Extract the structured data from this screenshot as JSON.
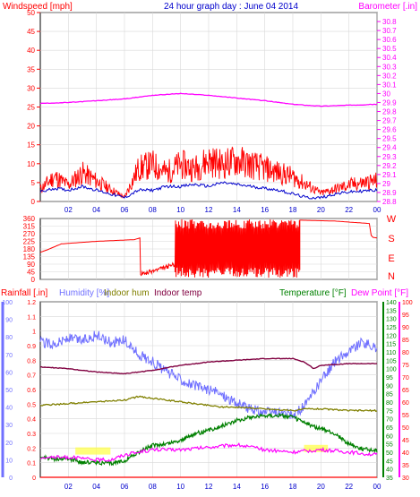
{
  "header": {
    "left_title": "Windspeed [mph]",
    "center_title": "24 hour graph day : June 04 2014",
    "right_title": "Barometer [.in]"
  },
  "colors": {
    "wind_speed": "#ff0000",
    "wind_avg": "#0000cc",
    "barometer": "#ff00ff",
    "wind_dir": "#ff0000",
    "rainfall": "#ff0000",
    "humidity": "#7070ff",
    "indoor_hum": "#808000",
    "indoor_temp": "#800040",
    "temperature": "#008000",
    "dew_point": "#ff00ff",
    "background": "#ffffff",
    "grid": "#d8d8d8",
    "dew_highlight": "#ffff40"
  },
  "chart_data": [
    {
      "type": "line",
      "name": "wind-barometer",
      "x_ticks": [
        "02",
        "04",
        "06",
        "08",
        "10",
        "12",
        "14",
        "16",
        "18",
        "20",
        "22",
        "00"
      ],
      "x_range_hours": [
        0,
        24
      ],
      "ylabel_left": "Windspeed [mph]",
      "ylim_left": [
        0,
        50
      ],
      "yticks_left": [
        0,
        5,
        10,
        15,
        20,
        25,
        30,
        35,
        40,
        45,
        50
      ],
      "ylabel_right": "Barometer [.in]",
      "ylim_right": [
        28.8,
        30.9
      ],
      "yticks_right": [
        "28.8",
        "28.9",
        "29",
        "29.1",
        "29.2",
        "29.3",
        "29.4",
        "29.5",
        "29.6",
        "29.7",
        "29.8",
        "29.9",
        "30",
        "30.1",
        "30.2",
        "30.3",
        "30.4",
        "30.5",
        "30.6",
        "30.7",
        "30.8"
      ],
      "grid": true,
      "series": [
        {
          "name": "Windspeed [mph]",
          "axis": "left",
          "points": [
            [
              0,
              3
            ],
            [
              1,
              6
            ],
            [
              2,
              4
            ],
            [
              3,
              7
            ],
            [
              4,
              5
            ],
            [
              5,
              3
            ],
            [
              6,
              1
            ],
            [
              7,
              8
            ],
            [
              8,
              9
            ],
            [
              9,
              7
            ],
            [
              10,
              9
            ],
            [
              11,
              8
            ],
            [
              12,
              10
            ],
            [
              13,
              9
            ],
            [
              14,
              10
            ],
            [
              15,
              9
            ],
            [
              16,
              8
            ],
            [
              17,
              7
            ],
            [
              18,
              6
            ],
            [
              19,
              4
            ],
            [
              20,
              2
            ],
            [
              21,
              3
            ],
            [
              22,
              4
            ],
            [
              23.9,
              5
            ]
          ]
        },
        {
          "name": "Average wind",
          "axis": "left",
          "points": [
            [
              0,
              2.5
            ],
            [
              1,
              3.5
            ],
            [
              2,
              3
            ],
            [
              3,
              4
            ],
            [
              4,
              3
            ],
            [
              5,
              2
            ],
            [
              6,
              1
            ],
            [
              7,
              3
            ],
            [
              8,
              3
            ],
            [
              9,
              4
            ],
            [
              10,
              4
            ],
            [
              11,
              4.5
            ],
            [
              12,
              4
            ],
            [
              13,
              5
            ],
            [
              14,
              4.5
            ],
            [
              15,
              4
            ],
            [
              16,
              3.5
            ],
            [
              17,
              3
            ],
            [
              18,
              2
            ],
            [
              19,
              1
            ],
            [
              20,
              1
            ],
            [
              21,
              2
            ],
            [
              22,
              2.5
            ],
            [
              23.9,
              3
            ]
          ]
        },
        {
          "name": "Barometer [.in]",
          "axis": "right",
          "points": [
            [
              0,
              29.89
            ],
            [
              2,
              29.9
            ],
            [
              4,
              29.92
            ],
            [
              6,
              29.94
            ],
            [
              8,
              29.98
            ],
            [
              10,
              30
            ],
            [
              12,
              29.98
            ],
            [
              14,
              29.95
            ],
            [
              16,
              29.92
            ],
            [
              18,
              29.88
            ],
            [
              20,
              29.86
            ],
            [
              22,
              29.87
            ],
            [
              23.9,
              29.88
            ]
          ]
        }
      ]
    },
    {
      "type": "line",
      "name": "wind-direction",
      "x_range_hours": [
        0,
        24
      ],
      "ylim": [
        0,
        360
      ],
      "yticks": [
        0,
        45,
        90,
        135,
        180,
        225,
        270,
        315,
        360
      ],
      "compass_labels": [
        "W",
        "S",
        "E",
        "N"
      ],
      "series": [
        {
          "name": "Wind direction",
          "points": [
            [
              0,
              160
            ],
            [
              0.5,
              175
            ],
            [
              1.5,
              210
            ],
            [
              4,
              225
            ],
            [
              6.7,
              235
            ],
            [
              7.1,
              245
            ],
            [
              7.15,
              30
            ],
            [
              8.5,
              60
            ],
            [
              9.6,
              90
            ],
            [
              10,
              110
            ],
            [
              10.5,
              20
            ],
            [
              11,
              330
            ],
            [
              11.5,
              40
            ],
            [
              12,
              330
            ],
            [
              12.5,
              20
            ],
            [
              13,
              330
            ],
            [
              13.5,
              60
            ],
            [
              14,
              340
            ],
            [
              14.5,
              30
            ],
            [
              15,
              330
            ],
            [
              15.5,
              40
            ],
            [
              16,
              330
            ],
            [
              16.5,
              90
            ],
            [
              17,
              340
            ],
            [
              17.5,
              40
            ],
            [
              18,
              340
            ],
            [
              18.5,
              350
            ],
            [
              21,
              345
            ],
            [
              23.5,
              330
            ],
            [
              23.6,
              250
            ],
            [
              24,
              245
            ]
          ]
        }
      ]
    },
    {
      "type": "line",
      "name": "temperature-humidity-rain",
      "x_ticks": [
        "02",
        "04",
        "06",
        "08",
        "10",
        "12",
        "14",
        "16",
        "18",
        "20",
        "22",
        "00"
      ],
      "x_range_hours": [
        0,
        24
      ],
      "legend": [
        "Rainfall [.in]",
        "Humidity [%]",
        "Indoor hum",
        "Indoor temp",
        "Temperature [°F]",
        "Dew Point [°F]"
      ],
      "legend_placement": "top",
      "ylim_rain": [
        0,
        1.2
      ],
      "yticks_rain": [
        "0",
        "0.1",
        "0.2",
        "0.3",
        "0.4",
        "0.5",
        "0.6",
        "0.7",
        "0.8",
        "0.9",
        "1",
        "1.1",
        "1.2"
      ],
      "ylim_humidity": [
        0,
        100
      ],
      "yticks_humidity": [
        0,
        10,
        20,
        30,
        40,
        50,
        60,
        70,
        80,
        90,
        100
      ],
      "ylim_temperature": [
        35,
        140
      ],
      "yticks_temperature": [
        35,
        40,
        45,
        50,
        55,
        60,
        65,
        70,
        75,
        80,
        85,
        90,
        95,
        100,
        105,
        110,
        115,
        120,
        125,
        130,
        135,
        140
      ],
      "ylim_dewpoint": [
        30,
        100
      ],
      "yticks_dewpoint": [
        30,
        35,
        40,
        45,
        50,
        55,
        60,
        65,
        70,
        75,
        80,
        85,
        90,
        95,
        100
      ],
      "series": [
        {
          "name": "Rainfall [.in]",
          "axis": "rain",
          "points": [
            [
              0,
              0
            ],
            [
              24,
              0
            ]
          ]
        },
        {
          "name": "Humidity [%]",
          "axis": "humidity",
          "points": [
            [
              0,
              77
            ],
            [
              1,
              76
            ],
            [
              2,
              79
            ],
            [
              3,
              78
            ],
            [
              4,
              81
            ],
            [
              5,
              77
            ],
            [
              6,
              78
            ],
            [
              7,
              70
            ],
            [
              8,
              66
            ],
            [
              9,
              60
            ],
            [
              10,
              56
            ],
            [
              11,
              52
            ],
            [
              12,
              50
            ],
            [
              13,
              47
            ],
            [
              14,
              42
            ],
            [
              15,
              39
            ],
            [
              16,
              37
            ],
            [
              17,
              37
            ],
            [
              18,
              35
            ],
            [
              19,
              42
            ],
            [
              20,
              55
            ],
            [
              21,
              66
            ],
            [
              22,
              72
            ],
            [
              23,
              77
            ],
            [
              24,
              73
            ]
          ]
        },
        {
          "name": "Indoor hum",
          "axis": "humidity",
          "points": [
            [
              0,
              41
            ],
            [
              2,
              42
            ],
            [
              4,
              43
            ],
            [
              6,
              44
            ],
            [
              7,
              46
            ],
            [
              8,
              45
            ],
            [
              9,
              44
            ],
            [
              10,
              43
            ],
            [
              11,
              42
            ],
            [
              12,
              41
            ],
            [
              13,
              40
            ],
            [
              14,
              40
            ],
            [
              16,
              39
            ],
            [
              18,
              38
            ],
            [
              19,
              39
            ],
            [
              20,
              39
            ],
            [
              22,
              38
            ],
            [
              24,
              38
            ]
          ]
        },
        {
          "name": "Indoor temp",
          "axis": "temperature",
          "points": [
            [
              0,
              101
            ],
            [
              2,
              100
            ],
            [
              4,
              98
            ],
            [
              6,
              97
            ],
            [
              8,
              99
            ],
            [
              10,
              102
            ],
            [
              12,
              104
            ],
            [
              14,
              105
            ],
            [
              16,
              106
            ],
            [
              18,
              106
            ],
            [
              18.8,
              104
            ],
            [
              19.5,
              100
            ],
            [
              20,
              102
            ],
            [
              22,
              103
            ],
            [
              24,
              103
            ]
          ]
        },
        {
          "name": "Temperature [°F]",
          "axis": "temperature",
          "points": [
            [
              0,
              47
            ],
            [
              1,
              46
            ],
            [
              2,
              46
            ],
            [
              3,
              44
            ],
            [
              4,
              44
            ],
            [
              5,
              43
            ],
            [
              6,
              45
            ],
            [
              7,
              50
            ],
            [
              8,
              54
            ],
            [
              9,
              55
            ],
            [
              10,
              57
            ],
            [
              11,
              61
            ],
            [
              12,
              63
            ],
            [
              13,
              66
            ],
            [
              14,
              69
            ],
            [
              15,
              71
            ],
            [
              16,
              72
            ],
            [
              17,
              72
            ],
            [
              18,
              71
            ],
            [
              19,
              67
            ],
            [
              20,
              64
            ],
            [
              21,
              61
            ],
            [
              22,
              55
            ],
            [
              23,
              52
            ],
            [
              24,
              51
            ]
          ]
        },
        {
          "name": "Dew Point [°F]",
          "axis": "dewpoint",
          "points": [
            [
              0,
              38
            ],
            [
              2,
              38
            ],
            [
              4,
              37
            ],
            [
              5,
              37
            ],
            [
              6,
              39
            ],
            [
              7,
              40
            ],
            [
              8,
              41
            ],
            [
              10,
              41
            ],
            [
              12,
              42
            ],
            [
              14,
              43
            ],
            [
              16,
              41
            ],
            [
              18,
              40
            ],
            [
              20,
              41
            ],
            [
              22,
              40
            ],
            [
              24,
              39
            ]
          ]
        }
      ]
    }
  ],
  "panel2_labels": {
    "left_title": "Rainfall [.in]",
    "humidity_title": "Humidity [%]",
    "indoor_hum_title": "Indoor hum",
    "indoor_temp_title": "Indoor temp",
    "temperature_title": "Temperature [°F]",
    "dewpoint_title": "Dew Point [°F]"
  }
}
